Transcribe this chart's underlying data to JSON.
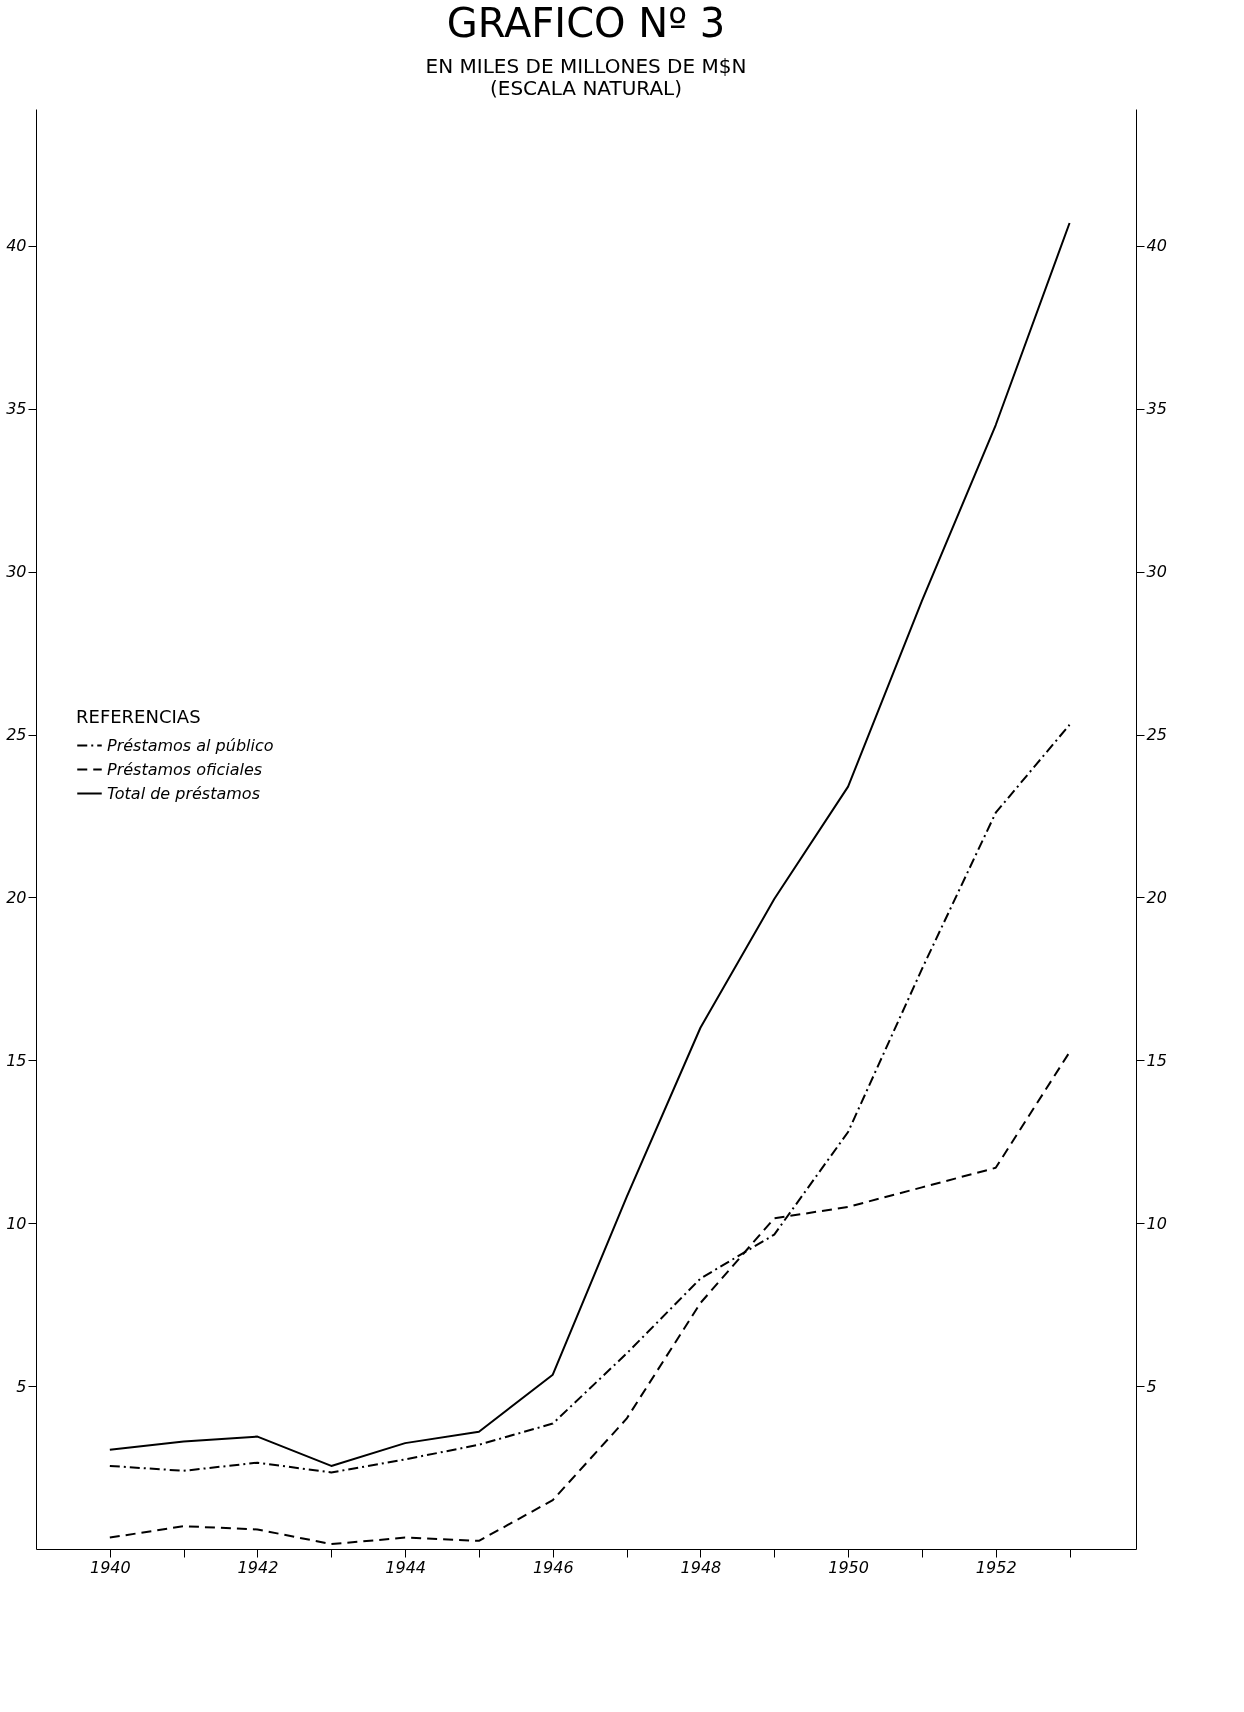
{
  "chart_data": {
    "type": "line",
    "title": "GRAFICO Nº 3",
    "subtitle": "EN MILES DE MILLONES DE M$N",
    "annotations": [
      "(ESCALA NATURAL)"
    ],
    "legend_title": "REFERENCIAS",
    "legend": "left",
    "x": [
      1940,
      1941,
      1942,
      1943,
      1944,
      1945,
      1946,
      1947,
      1948,
      1949,
      1950,
      1951,
      1952,
      1953
    ],
    "series": [
      {
        "name": "Préstamos al público",
        "color": "#000000",
        "line_style": "dashdot",
        "values": [
          2.55,
          2.4,
          2.65,
          2.35,
          2.75,
          3.2,
          3.85,
          6.0,
          8.3,
          9.65,
          12.8,
          17.8,
          22.6,
          25.3
        ]
      },
      {
        "name": "Préstamos oficiales",
        "color": "#000000",
        "line_style": "dashed",
        "values": [
          0.35,
          0.7,
          0.6,
          0.15,
          0.35,
          0.25,
          1.5,
          4.0,
          7.55,
          10.15,
          10.5,
          11.1,
          11.7,
          15.25
        ]
      },
      {
        "name": "Total de préstamos",
        "color": "#000000",
        "line_style": "solid",
        "values": [
          3.05,
          3.3,
          3.45,
          2.55,
          3.25,
          3.6,
          5.35,
          10.8,
          16.0,
          19.95,
          23.4,
          29.1,
          34.5,
          40.7
        ]
      }
    ],
    "xlim": [
      1939,
      1953.9
    ],
    "xticks": [
      1940,
      {
        "value": 1941,
        "label": null
      },
      1942,
      {
        "value": 1943,
        "label": null
      },
      1944,
      {
        "value": 1945,
        "label": null
      },
      1946,
      {
        "value": 1947,
        "label": null
      },
      1948,
      {
        "value": 1949,
        "label": null
      },
      1950,
      {
        "value": 1951,
        "label": null
      },
      1952,
      {
        "value": 1953,
        "label": null
      }
    ],
    "ylim": [
      0,
      44.2
    ],
    "yticks": [
      5,
      10,
      15,
      20,
      25,
      30,
      35,
      40
    ],
    "y2lim": [
      0,
      44.2
    ],
    "y2ticks": [
      5,
      10,
      15,
      20,
      25,
      30,
      35,
      40
    ],
    "grid": false
  }
}
